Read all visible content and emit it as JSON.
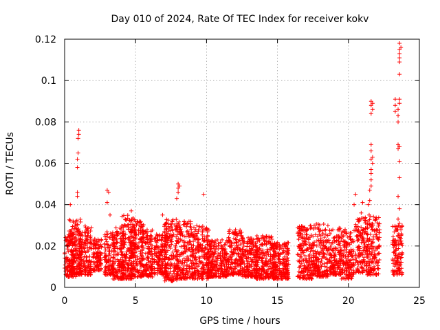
{
  "chart_data": {
    "type": "scatter",
    "title": "Day 010 of 2024, Rate Of TEC Index for receiver kokv",
    "xlabel": "GPS time / hours",
    "ylabel": "ROTI / TECUs",
    "xlim": [
      0,
      25
    ],
    "ylim": [
      0,
      0.12
    ],
    "x_ticks": [
      0,
      5,
      10,
      15,
      20,
      25
    ],
    "x_tick_labels": [
      "0",
      "5",
      "10",
      "15",
      "20",
      "25"
    ],
    "y_ticks": [
      0,
      0.02,
      0.04,
      0.06,
      0.08,
      0.1,
      0.12
    ],
    "y_tick_labels": [
      "0",
      "0.02",
      "0.04",
      "0.06",
      "0.08",
      "0.1",
      "0.12"
    ],
    "grid": true,
    "marker": "+",
    "marker_color": "#ff0000",
    "series": [
      {
        "name": "ROTI",
        "dense_bands": [
          [
            0.0,
            0.8,
            0.005,
            0.026
          ],
          [
            0.3,
            1.2,
            0.006,
            0.033
          ],
          [
            1.0,
            1.9,
            0.006,
            0.03
          ],
          [
            2.0,
            2.6,
            0.008,
            0.024
          ],
          [
            2.8,
            3.5,
            0.006,
            0.027
          ],
          [
            3.4,
            4.2,
            0.004,
            0.03
          ],
          [
            4.0,
            5.0,
            0.004,
            0.035
          ],
          [
            4.6,
            5.6,
            0.005,
            0.032
          ],
          [
            5.4,
            6.2,
            0.005,
            0.028
          ],
          [
            6.3,
            7.2,
            0.006,
            0.026
          ],
          [
            7.0,
            8.0,
            0.003,
            0.033
          ],
          [
            7.8,
            9.0,
            0.004,
            0.032
          ],
          [
            9.0,
            10.2,
            0.004,
            0.03
          ],
          [
            10.0,
            11.5,
            0.005,
            0.023
          ],
          [
            11.5,
            12.5,
            0.006,
            0.028
          ],
          [
            12.5,
            13.6,
            0.005,
            0.024
          ],
          [
            13.5,
            14.8,
            0.004,
            0.025
          ],
          [
            14.6,
            15.8,
            0.004,
            0.022
          ],
          [
            16.4,
            17.5,
            0.004,
            0.03
          ],
          [
            17.5,
            18.6,
            0.005,
            0.031
          ],
          [
            18.6,
            19.5,
            0.006,
            0.029
          ],
          [
            19.5,
            20.4,
            0.004,
            0.028
          ],
          [
            20.5,
            21.3,
            0.007,
            0.034
          ],
          [
            21.3,
            22.2,
            0.006,
            0.035
          ],
          [
            23.1,
            23.8,
            0.006,
            0.03
          ]
        ],
        "outliers": [
          [
            0.4,
            0.04
          ],
          [
            0.9,
            0.058
          ],
          [
            0.9,
            0.062
          ],
          [
            0.95,
            0.065
          ],
          [
            0.95,
            0.072
          ],
          [
            1.0,
            0.074
          ],
          [
            1.0,
            0.076
          ],
          [
            0.9,
            0.044
          ],
          [
            0.9,
            0.046
          ],
          [
            0.8,
            0.032
          ],
          [
            3.0,
            0.041
          ],
          [
            3.1,
            0.046
          ],
          [
            3.0,
            0.047
          ],
          [
            3.2,
            0.035
          ],
          [
            7.9,
            0.043
          ],
          [
            8.0,
            0.046
          ],
          [
            8.0,
            0.048
          ],
          [
            8.1,
            0.049
          ],
          [
            8.0,
            0.05
          ],
          [
            9.8,
            0.045
          ],
          [
            4.7,
            0.037
          ],
          [
            6.9,
            0.035
          ],
          [
            20.4,
            0.04
          ],
          [
            20.5,
            0.045
          ],
          [
            20.9,
            0.036
          ],
          [
            21.0,
            0.041
          ],
          [
            21.4,
            0.04
          ],
          [
            21.5,
            0.042
          ],
          [
            21.5,
            0.047
          ],
          [
            21.6,
            0.049
          ],
          [
            21.6,
            0.052
          ],
          [
            21.6,
            0.055
          ],
          [
            21.6,
            0.057
          ],
          [
            21.7,
            0.06
          ],
          [
            21.6,
            0.062
          ],
          [
            21.7,
            0.063
          ],
          [
            21.6,
            0.066
          ],
          [
            21.6,
            0.069
          ],
          [
            21.6,
            0.084
          ],
          [
            21.7,
            0.086
          ],
          [
            21.6,
            0.088
          ],
          [
            21.7,
            0.089
          ],
          [
            21.6,
            0.09
          ],
          [
            23.3,
            0.085
          ],
          [
            23.3,
            0.088
          ],
          [
            23.3,
            0.091
          ],
          [
            23.5,
            0.08
          ],
          [
            23.5,
            0.083
          ],
          [
            23.5,
            0.086
          ],
          [
            23.6,
            0.089
          ],
          [
            23.6,
            0.091
          ],
          [
            23.5,
            0.067
          ],
          [
            23.6,
            0.068
          ],
          [
            23.5,
            0.069
          ],
          [
            23.6,
            0.061
          ],
          [
            23.6,
            0.053
          ],
          [
            23.5,
            0.044
          ],
          [
            23.6,
            0.038
          ],
          [
            23.5,
            0.033
          ],
          [
            23.6,
            0.031
          ],
          [
            23.6,
            0.103
          ],
          [
            23.6,
            0.109
          ],
          [
            23.6,
            0.111
          ],
          [
            23.6,
            0.113
          ],
          [
            23.6,
            0.115
          ],
          [
            23.7,
            0.116
          ],
          [
            23.6,
            0.118
          ]
        ]
      }
    ]
  }
}
